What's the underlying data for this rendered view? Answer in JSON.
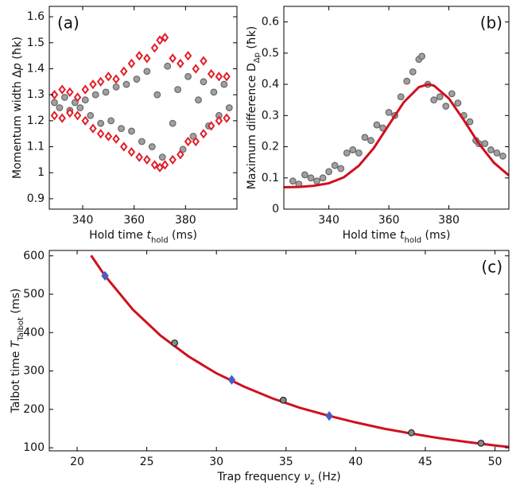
{
  "chart_data": [
    {
      "type": "scatter",
      "tag": "(a)",
      "xlabel": [
        {
          "text": "Hold time "
        },
        {
          "text": "t",
          "style": "italic"
        },
        {
          "text": "hold",
          "style": "sub"
        },
        {
          "text": " (ms)"
        }
      ],
      "ylabel": [
        {
          "text": "Momentum width Δ"
        },
        {
          "text": "p",
          "style": "italic"
        },
        {
          "text": " (ħk)"
        }
      ],
      "xlim": [
        327,
        400
      ],
      "xticks": [
        340,
        360,
        380
      ],
      "ylim": [
        0.86,
        1.64
      ],
      "yticks": [
        0.9,
        1,
        1.1,
        1.2,
        1.3,
        1.4,
        1.5,
        1.6
      ],
      "series": [
        {
          "marker": "circle",
          "color": "#a0a0a0",
          "x": [
            329,
            331,
            333,
            335,
            337,
            339,
            341,
            343,
            345,
            347,
            349,
            351,
            353,
            355,
            357,
            359,
            361,
            363,
            365,
            367,
            369,
            371,
            373,
            375,
            377,
            379,
            381,
            383,
            385,
            387,
            389,
            391,
            393,
            395,
            397
          ],
          "values": [
            1.27,
            1.25,
            1.29,
            1.24,
            1.27,
            1.25,
            1.28,
            1.22,
            1.3,
            1.19,
            1.31,
            1.2,
            1.33,
            1.17,
            1.34,
            1.16,
            1.36,
            1.12,
            1.39,
            1.1,
            1.3,
            1.06,
            1.41,
            1.19,
            1.32,
            1.09,
            1.37,
            1.14,
            1.28,
            1.35,
            1.18,
            1.31,
            1.22,
            1.34,
            1.25
          ]
        },
        {
          "marker": "diamond",
          "color": "#e0202a",
          "x": [
            329,
            332,
            335,
            338,
            341,
            344,
            347,
            350,
            353,
            356,
            359,
            362,
            365,
            368,
            370,
            372,
            375,
            378,
            381,
            384,
            387,
            390,
            393,
            396,
            329,
            332,
            335,
            338,
            341,
            344,
            347,
            350,
            353,
            356,
            359,
            362,
            365,
            368,
            370,
            372,
            375,
            378,
            381,
            384,
            387,
            390,
            393,
            396
          ],
          "values": [
            1.3,
            1.32,
            1.31,
            1.29,
            1.32,
            1.34,
            1.35,
            1.37,
            1.36,
            1.39,
            1.42,
            1.45,
            1.44,
            1.48,
            1.51,
            1.52,
            1.44,
            1.42,
            1.45,
            1.4,
            1.43,
            1.38,
            1.37,
            1.37,
            1.22,
            1.21,
            1.23,
            1.22,
            1.2,
            1.17,
            1.15,
            1.14,
            1.13,
            1.1,
            1.08,
            1.06,
            1.05,
            1.03,
            1.02,
            1.03,
            1.05,
            1.07,
            1.12,
            1.12,
            1.15,
            1.18,
            1.2,
            1.21
          ]
        }
      ]
    },
    {
      "type": "scatter",
      "tag": "(b)",
      "xlabel": [
        {
          "text": "Hold time "
        },
        {
          "text": "t",
          "style": "italic"
        },
        {
          "text": "hold",
          "style": "sub"
        },
        {
          "text": " (ms)"
        }
      ],
      "ylabel": [
        {
          "text": "Maximum difference D"
        },
        {
          "text": "Δp",
          "style": "sub"
        },
        {
          "text": " (ħk)"
        }
      ],
      "xlim": [
        325,
        400
      ],
      "xticks": [
        340,
        360,
        380
      ],
      "ylim": [
        0,
        0.65
      ],
      "yticks": [
        0,
        0.1,
        0.2,
        0.3,
        0.4,
        0.5,
        0.6
      ],
      "series": [
        {
          "marker": "circle",
          "color": "#a0a0a0",
          "x": [
            328,
            330,
            332,
            334,
            336,
            338,
            340,
            342,
            344,
            346,
            348,
            350,
            352,
            354,
            356,
            358,
            360,
            362,
            364,
            366,
            368,
            370,
            371,
            373,
            375,
            377,
            379,
            381,
            383,
            385,
            387,
            389,
            390,
            392,
            394,
            396,
            398
          ],
          "values": [
            0.09,
            0.08,
            0.11,
            0.1,
            0.09,
            0.1,
            0.12,
            0.14,
            0.13,
            0.18,
            0.19,
            0.18,
            0.23,
            0.22,
            0.27,
            0.26,
            0.31,
            0.3,
            0.36,
            0.41,
            0.44,
            0.48,
            0.49,
            0.4,
            0.35,
            0.36,
            0.33,
            0.37,
            0.34,
            0.3,
            0.28,
            0.22,
            0.21,
            0.21,
            0.19,
            0.18,
            0.17
          ]
        },
        {
          "marker": "none",
          "color": "#d0101e",
          "x": [
            325,
            330,
            335,
            340,
            345,
            350,
            355,
            360,
            365,
            370,
            373,
            375,
            380,
            385,
            390,
            395,
            400
          ],
          "values": [
            0.07,
            0.071,
            0.075,
            0.083,
            0.102,
            0.139,
            0.196,
            0.27,
            0.343,
            0.391,
            0.4,
            0.396,
            0.355,
            0.285,
            0.21,
            0.149,
            0.108
          ]
        }
      ]
    },
    {
      "type": "scatter",
      "tag": "(c)",
      "xlabel": [
        {
          "text": "Trap frequency "
        },
        {
          "text": "ν",
          "style": "italic"
        },
        {
          "text": "z",
          "style": "sub"
        },
        {
          "text": " (Hz)"
        }
      ],
      "ylabel": [
        {
          "text": "Talbot time "
        },
        {
          "text": "T",
          "style": "italic"
        },
        {
          "text": "Talbot",
          "style": "sub"
        },
        {
          "text": " (ms)"
        }
      ],
      "xlim": [
        18,
        51
      ],
      "xticks": [
        20,
        25,
        30,
        35,
        40,
        45,
        50
      ],
      "ylim": [
        92,
        614
      ],
      "yticks": [
        100,
        200,
        300,
        400,
        500,
        600
      ],
      "series": [
        {
          "marker": "none",
          "color": "#d0101e",
          "x": [
            21,
            22,
            24,
            26,
            28,
            30,
            32,
            34,
            36,
            38,
            40,
            42,
            44,
            46,
            48,
            50,
            51
          ],
          "values": [
            601,
            548,
            460,
            392,
            338,
            294,
            259,
            229,
            204,
            184,
            166,
            150,
            137,
            125,
            115,
            106,
            102
          ]
        },
        {
          "marker": "circle",
          "color": "#888888",
          "x": [
            27,
            34.8,
            44,
            49
          ],
          "values": [
            373,
            224,
            139,
            112
          ]
        },
        {
          "marker": "diamond",
          "color": "#4a5cc8",
          "x": [
            22,
            31.1,
            38.1
          ],
          "values": [
            548,
            277,
            183
          ]
        }
      ]
    }
  ]
}
